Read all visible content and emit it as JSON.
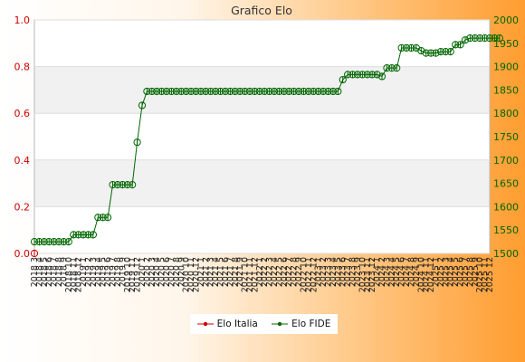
{
  "chart_data": {
    "type": "line",
    "title": "Grafico Elo",
    "legend_position": "bottom",
    "grid": true,
    "left_axis": {
      "ylim": [
        0.0,
        1.0
      ],
      "ticks": [
        "0.0",
        "0.2",
        "0.4",
        "0.6",
        "0.8",
        "1.0"
      ]
    },
    "right_axis": {
      "ylim": [
        1500,
        2000
      ],
      "ticks": [
        "1500",
        "1550",
        "1600",
        "1650",
        "1700",
        "1750",
        "1800",
        "1850",
        "1900",
        "1950",
        "2000"
      ]
    },
    "x_labels": [
      "2018 3",
      "2018 4",
      "2018 5",
      "2018 6",
      "2018 7",
      "2018 8",
      "2018 9",
      "2018 10",
      "2018 11",
      "2018 12",
      "2019 1",
      "2019 2",
      "2019 3",
      "2019 4",
      "2019 5",
      "2019 6",
      "2019 7",
      "2019 8",
      "2019 9",
      "2019 10",
      "2019 11",
      "2019 12",
      "2020 1",
      "2020 2",
      "2020 3",
      "2020 4",
      "2020 5",
      "2020 6",
      "2020 7",
      "2020 8",
      "2020 9",
      "2020 10",
      "2020 11",
      "2020 12",
      "2021 1",
      "2021 2",
      "2021 3",
      "2021 4",
      "2021 5",
      "2021 6",
      "2021 7",
      "2021 8",
      "2021 9",
      "2021 10",
      "2021 11",
      "2021 12",
      "2022 1",
      "2022 2",
      "2022 3",
      "2022 4",
      "2022 5",
      "2022 6",
      "2022 7",
      "2022 8",
      "2022 9",
      "2022 10",
      "2022 11",
      "2022 12",
      "2023 1",
      "2023 2",
      "2023 3",
      "2023 4",
      "2023 5",
      "2023 6",
      "2023 7",
      "2023 8",
      "2023 9",
      "2023 10",
      "2023 11",
      "2023 12",
      "2024 1",
      "2024 2",
      "2024 3",
      "2024 4",
      "2024 5",
      "2024 6",
      "2024 7",
      "2024 8",
      "2024 9",
      "2024 10",
      "2024 11",
      "2024 12",
      "2025 1",
      "2025 2",
      "2025 3",
      "2025 4",
      "2025 5",
      "2025 6",
      "2025 7",
      "2025 8",
      "2025 9",
      "2025 10",
      "2025 11",
      "2025 12"
    ],
    "series": [
      {
        "name": "Elo Italia",
        "axis": "left",
        "color": "#cc0000",
        "values": [
          0
        ]
      },
      {
        "name": "Elo FIDE",
        "axis": "right",
        "color": "#006600",
        "values": [
          1525,
          1525,
          1525,
          1525,
          1525,
          1525,
          1525,
          1525,
          1540,
          1540,
          1540,
          1540,
          1540,
          1577,
          1577,
          1577,
          1647,
          1647,
          1647,
          1647,
          1647,
          1738,
          1817,
          1847,
          1847,
          1847,
          1847,
          1847,
          1847,
          1847,
          1847,
          1847,
          1847,
          1847,
          1847,
          1847,
          1847,
          1847,
          1847,
          1847,
          1847,
          1847,
          1847,
          1847,
          1847,
          1847,
          1847,
          1847,
          1847,
          1847,
          1847,
          1847,
          1847,
          1847,
          1847,
          1847,
          1847,
          1847,
          1847,
          1847,
          1847,
          1847,
          1847,
          1872,
          1883,
          1883,
          1883,
          1883,
          1883,
          1883,
          1883,
          1879,
          1897,
          1897,
          1897,
          1940,
          1940,
          1940,
          1940,
          1934,
          1929,
          1929,
          1929,
          1932,
          1932,
          1932,
          1947,
          1947,
          1957,
          1961,
          1961,
          1961,
          1961,
          1961,
          1961,
          1961
        ]
      }
    ]
  }
}
